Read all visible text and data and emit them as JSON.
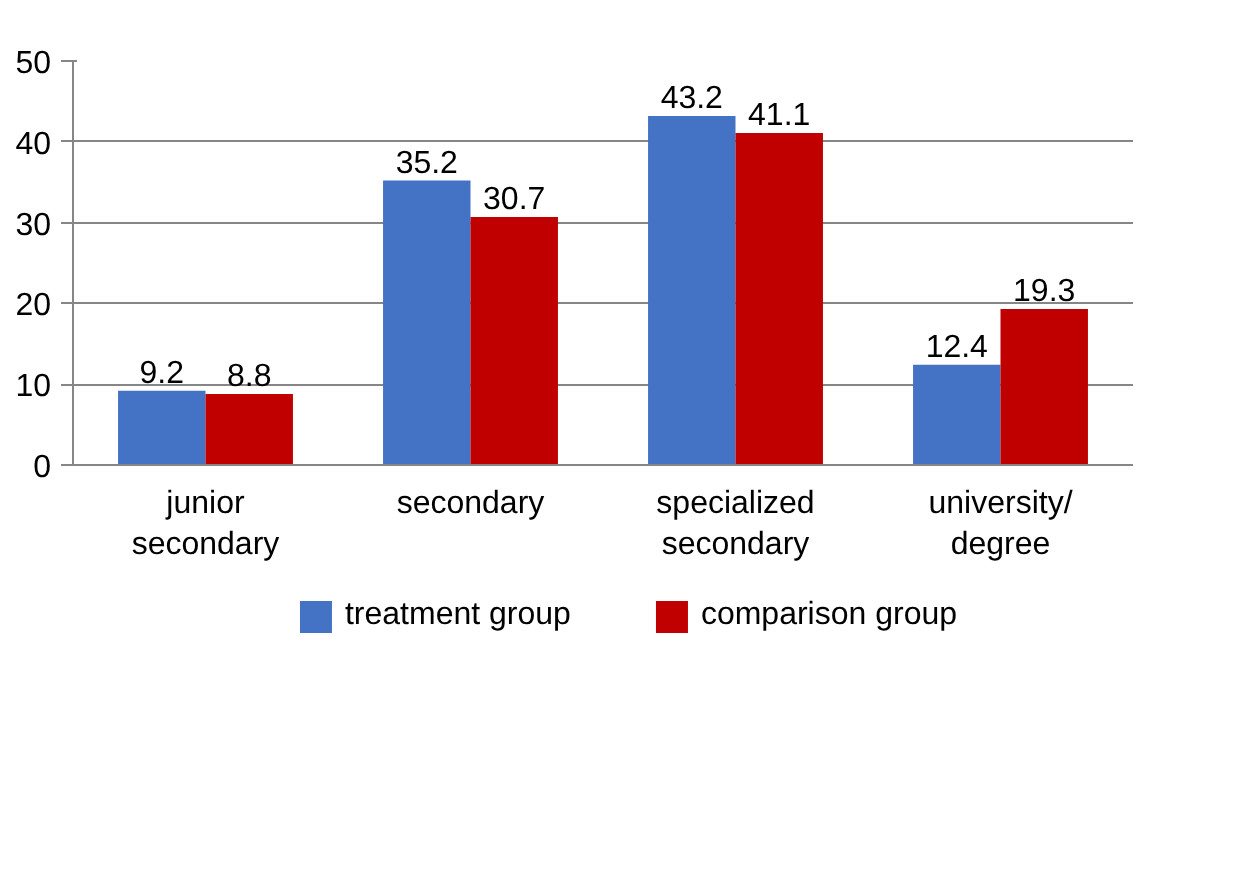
{
  "chart_data": {
    "type": "bar",
    "categories": [
      "junior secondary",
      "secondary",
      "specialized secondary",
      "university/ degree"
    ],
    "series": [
      {
        "name": "treatment group",
        "color": "#4472c4",
        "values": [
          9.2,
          35.2,
          43.2,
          12.4
        ]
      },
      {
        "name": "comparison group",
        "color": "#c00000",
        "values": [
          8.8,
          30.7,
          41.1,
          19.3
        ]
      }
    ],
    "ylim": [
      0,
      50
    ],
    "yticks": [
      0,
      10,
      20,
      30,
      40,
      50
    ],
    "grid": "y",
    "legend": "bottom",
    "data_labels": true
  }
}
